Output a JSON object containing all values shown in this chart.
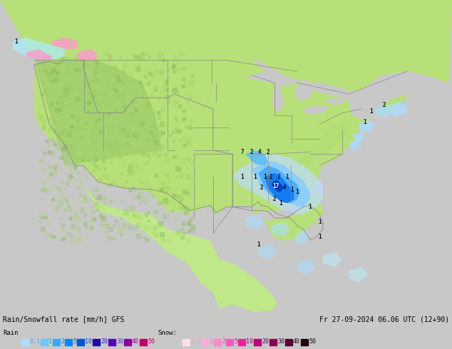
{
  "title_line1": "Rain/Snowfall rate [mm/h] GFS",
  "title_line2": "Fr 27-09-2024 06.06 UTC (12+90)",
  "fig_bg": "#c8c8c8",
  "map_land_color": "#b8e088",
  "map_ocean_color": "#d8d8d8",
  "map_lake_color": "#c8c8c8",
  "border_color": "#888888",
  "border_lw": 0.6,
  "bottom_bg": "#c8c8c8",
  "rain_legend_vals": [
    "0.1",
    "1",
    "2",
    "5",
    "10",
    "20",
    "30",
    "40",
    "50"
  ],
  "rain_legend_colors": [
    "#aaf0ff",
    "#55ddff",
    "#22bbff",
    "#0099ff",
    "#0055dd",
    "#3300aa",
    "#6600bb",
    "#990099",
    "#cc0066"
  ],
  "snow_legend_vals": [
    "0.1",
    "1",
    "2",
    "5",
    "10",
    "20",
    "30",
    "40",
    "50"
  ],
  "snow_legend_colors": [
    "#ffccee",
    "#ff99dd",
    "#ff66cc",
    "#ff33bb",
    "#ee0099",
    "#bb0077",
    "#880055",
    "#550033",
    "#220011"
  ],
  "precip_light_color": "#aaddff",
  "precip_mid_color": "#55bbff",
  "precip_strong_color": "#1188ee",
  "precip_heavy_color": "#0055cc",
  "precip_extreme_color": "#003399",
  "snow_nw_color": "#ffaacc",
  "snow_ne_color": "#aaeeff",
  "text_color": "#000000",
  "text_color_white": "#ffffff"
}
